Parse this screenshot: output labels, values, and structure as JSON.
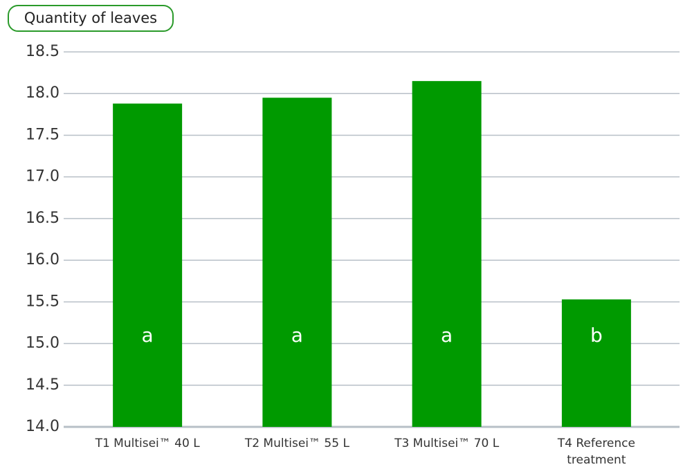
{
  "chart_data": {
    "type": "bar",
    "title": "Quantity of leaves",
    "categories": [
      "T1 Multisei™ 40 L",
      "T2 Multisei™ 55 L",
      "T3 Multisei™ 70 L",
      "T4 Reference treatment"
    ],
    "values": [
      17.88,
      17.95,
      18.15,
      15.53
    ],
    "group_letters": [
      "a",
      "a",
      "a",
      "b"
    ],
    "color": "#009a00",
    "ylim": [
      14,
      18.5
    ],
    "yticks": [
      {
        "value": 14,
        "label": "14.0"
      },
      {
        "value": 14.5,
        "label": "14.5"
      },
      {
        "value": 15,
        "label": "15.0"
      },
      {
        "value": 15.5,
        "label": "15.5"
      },
      {
        "value": 16,
        "label": "16.0"
      },
      {
        "value": 16.5,
        "label": "16.5"
      },
      {
        "value": 17,
        "label": "17.0"
      },
      {
        "value": 17.5,
        "label": "17.5"
      },
      {
        "value": 18,
        "label": "18.0"
      },
      {
        "value": 18.5,
        "label": "18.5"
      }
    ],
    "grid": true
  }
}
